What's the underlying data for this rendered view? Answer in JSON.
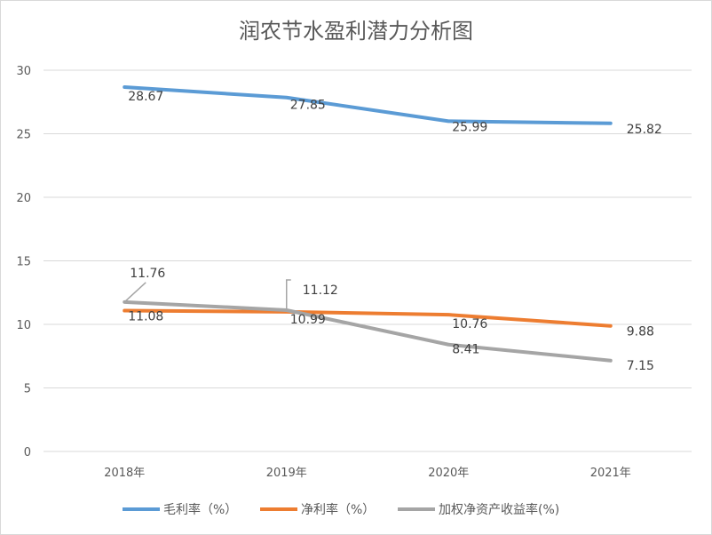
{
  "chart_data": {
    "type": "line",
    "title": "润农节水盈利潜力分析图",
    "xlabel": "",
    "ylabel": "",
    "categories": [
      "2018年",
      "2019年",
      "2020年",
      "2021年"
    ],
    "ylim": [
      0,
      30
    ],
    "yticks": [
      0,
      5,
      10,
      15,
      20,
      25,
      30
    ],
    "grid": true,
    "legend_position": "bottom",
    "series": [
      {
        "name": "毛利率（%）",
        "color": "#5b9bd5",
        "values": [
          28.67,
          27.85,
          25.99,
          25.82
        ],
        "labels": [
          "28.67",
          "27.85",
          "25.99",
          "25.82"
        ]
      },
      {
        "name": "净利率（%）",
        "color": "#ed7d31",
        "values": [
          11.08,
          10.99,
          10.76,
          9.88
        ],
        "labels": [
          "11.08",
          "10.99",
          "10.76",
          "9.88"
        ]
      },
      {
        "name": "加权净资产收益率(%)",
        "color": "#a5a5a5",
        "values": [
          11.76,
          11.12,
          8.41,
          7.15
        ],
        "labels": [
          "11.76",
          "11.12",
          "8.41",
          "7.15"
        ]
      }
    ]
  }
}
